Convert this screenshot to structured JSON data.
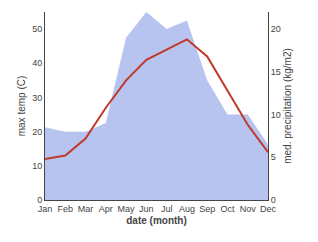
{
  "chart_data": {
    "type": "line",
    "categories": [
      "Jan",
      "Feb",
      "Mar",
      "Apr",
      "May",
      "Jun",
      "Jul",
      "Aug",
      "Sep",
      "Oct",
      "Nov",
      "Dec"
    ],
    "xlabel": "date (month)",
    "ylabel": "max temp (C)",
    "y2label": "med. precipitation (kg/m2)",
    "series": [
      {
        "type": "area",
        "color": "#b8c4f0",
        "axis": "y2",
        "values": [
          8.5,
          8,
          8,
          9,
          19,
          22,
          20,
          21,
          14,
          10,
          10,
          6.5
        ]
      },
      {
        "type": "line",
        "color": "#c0392b",
        "values": [
          12,
          13,
          18,
          27,
          35,
          41,
          44,
          47,
          42,
          32,
          22,
          14
        ]
      }
    ],
    "ylim": [
      0,
      55
    ],
    "yticks": [
      0,
      10,
      20,
      30,
      40,
      50
    ],
    "y2lim": [
      0,
      22
    ],
    "y2ticks": [
      0,
      5,
      10,
      15,
      20
    ],
    "grid": false
  }
}
